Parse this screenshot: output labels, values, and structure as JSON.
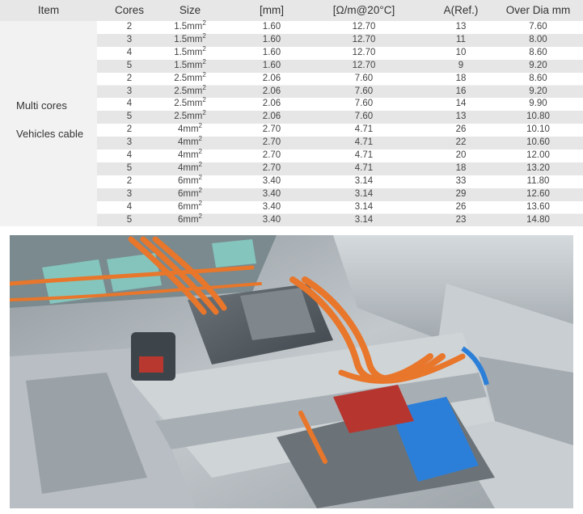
{
  "table": {
    "headers": [
      "Item",
      "Cores",
      "Size",
      "[mm]",
      "[Ω/m@20°C]",
      "A(Ref.)",
      "Over Dia mm"
    ],
    "item_label_1": "Multi cores",
    "item_label_2": "Vehicles cable",
    "rows": [
      {
        "cores": "2",
        "size": "1.5mm",
        "mm": "1.60",
        "ohm": "12.70",
        "amp": "13",
        "dia": "7.60"
      },
      {
        "cores": "3",
        "size": "1.5mm",
        "mm": "1.60",
        "ohm": "12.70",
        "amp": "11",
        "dia": "8.00"
      },
      {
        "cores": "4",
        "size": "1.5mm",
        "mm": "1.60",
        "ohm": "12.70",
        "amp": "10",
        "dia": "8.60"
      },
      {
        "cores": "5",
        "size": "1.5mm",
        "mm": "1.60",
        "ohm": "12.70",
        "amp": "9",
        "dia": "9.20"
      },
      {
        "cores": "2",
        "size": "2.5mm",
        "mm": "2.06",
        "ohm": "7.60",
        "amp": "18",
        "dia": "8.60"
      },
      {
        "cores": "3",
        "size": "2.5mm",
        "mm": "2.06",
        "ohm": "7.60",
        "amp": "16",
        "dia": "9.20"
      },
      {
        "cores": "4",
        "size": "2.5mm",
        "mm": "2.06",
        "ohm": "7.60",
        "amp": "14",
        "dia": "9.90"
      },
      {
        "cores": "5",
        "size": "2.5mm",
        "mm": "2.06",
        "ohm": "7.60",
        "amp": "13",
        "dia": "10.80"
      },
      {
        "cores": "2",
        "size": "4mm",
        "mm": "2.70",
        "ohm": "4.71",
        "amp": "26",
        "dia": "10.10"
      },
      {
        "cores": "3",
        "size": "4mm",
        "mm": "2.70",
        "ohm": "4.71",
        "amp": "22",
        "dia": "10.60"
      },
      {
        "cores": "4",
        "size": "4mm",
        "mm": "2.70",
        "ohm": "4.71",
        "amp": "20",
        "dia": "12.00"
      },
      {
        "cores": "5",
        "size": "4mm",
        "mm": "2.70",
        "ohm": "4.71",
        "amp": "18",
        "dia": "13.20"
      },
      {
        "cores": "2",
        "size": "6mm",
        "mm": "3.40",
        "ohm": "3.14",
        "amp": "33",
        "dia": "11.80"
      },
      {
        "cores": "3",
        "size": "6mm",
        "mm": "3.40",
        "ohm": "3.14",
        "amp": "29",
        "dia": "12.60"
      },
      {
        "cores": "4",
        "size": "6mm",
        "mm": "3.40",
        "ohm": "3.14",
        "amp": "26",
        "dia": "13.60"
      },
      {
        "cores": "5",
        "size": "6mm",
        "mm": "3.40",
        "ohm": "3.14",
        "amp": "23",
        "dia": "14.80"
      }
    ],
    "superscript": "2"
  },
  "photo": {
    "icon": "ev-underbody-photo",
    "colors": {
      "cable": "#e8762b",
      "metal": "#b7bec4",
      "shadow": "#5c646b",
      "blue": "#2b7bd6",
      "battery": "#7fc7c0"
    }
  }
}
